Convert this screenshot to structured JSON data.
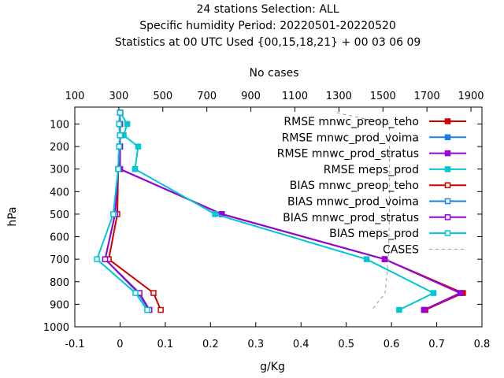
{
  "chart_data": {
    "type": "line",
    "title_lines": [
      "24 stations Selection: ALL",
      "Specific humidity  Period: 20220501-20220520",
      "Statistics at 00 UTC  Used {00,15,18,21} + 00 03 06 09"
    ],
    "xlabel": "g/Kg",
    "ylabel": "hPa",
    "x2label": "No cases",
    "xlim": [
      -0.1,
      0.8
    ],
    "ylim": [
      1000,
      25
    ],
    "x2lim": [
      100,
      1950
    ],
    "x_ticks": [
      "-0.1",
      "0",
      "0.1",
      "0.2",
      "0.3",
      "0.4",
      "0.5",
      "0.6",
      "0.7",
      "0.8"
    ],
    "y_ticks": [
      "100",
      "200",
      "300",
      "400",
      "500",
      "600",
      "700",
      "800",
      "900",
      "1000"
    ],
    "x2_ticks": [
      "100",
      "300",
      "500",
      "700",
      "900",
      "1100",
      "1300",
      "1500",
      "1700",
      "1900"
    ],
    "legend_position": "top-right",
    "levels": [
      50,
      100,
      150,
      200,
      300,
      500,
      700,
      850,
      925
    ],
    "series": [
      {
        "name": "RMSE mnwc_preop_teho",
        "color": "#cc0000",
        "marker": "filled-square",
        "x": [
          0.0,
          0.0,
          0.0,
          0.0,
          0.0,
          0.225,
          0.585,
          0.758,
          0.675
        ]
      },
      {
        "name": "RMSE mnwc_prod_voima",
        "color": "#1a7fe6",
        "marker": "filled-square",
        "x": [
          0.0,
          0.0,
          0.0,
          0.0,
          0.0,
          0.225,
          0.585,
          0.752,
          0.672
        ]
      },
      {
        "name": "RMSE mnwc_prod_stratus",
        "color": "#9b00d9",
        "marker": "filled-square",
        "x": [
          0.0,
          0.0,
          0.0,
          0.0,
          0.0,
          0.225,
          0.585,
          0.752,
          0.672
        ]
      },
      {
        "name": "RMSE meps_prod",
        "color": "#00c8d2",
        "marker": "filled-square",
        "x": [
          0.001,
          0.016,
          0.008,
          0.04,
          0.033,
          0.21,
          0.545,
          0.693,
          0.617
        ]
      },
      {
        "name": "BIAS mnwc_preop_teho",
        "color": "#cc0000",
        "marker": "open-square",
        "x": [
          0.0,
          -0.002,
          0.0,
          -0.002,
          -0.004,
          -0.006,
          -0.025,
          0.074,
          0.09
        ]
      },
      {
        "name": "BIAS mnwc_prod_voima",
        "color": "#1a7fe6",
        "marker": "open-square",
        "x": [
          0.0,
          -0.002,
          0.0,
          -0.002,
          -0.004,
          -0.011,
          -0.033,
          0.04,
          0.063
        ]
      },
      {
        "name": "BIAS mnwc_prod_stratus",
        "color": "#9b00d9",
        "marker": "open-square",
        "x": [
          0.0,
          -0.002,
          0.0,
          -0.002,
          -0.004,
          -0.011,
          -0.033,
          0.043,
          0.065
        ]
      },
      {
        "name": "BIAS meps_prod",
        "color": "#00c8d2",
        "marker": "open-square",
        "x": [
          0.0,
          -0.002,
          0.0,
          -0.002,
          -0.004,
          -0.015,
          -0.051,
          0.034,
          0.06
        ]
      },
      {
        "name": "CASES",
        "color": "#999999",
        "marker": "none",
        "axis": "x2",
        "x": [
          1290,
          1530,
          1530,
          1530,
          1530,
          1530,
          1525,
          1510,
          1450
        ]
      }
    ]
  }
}
